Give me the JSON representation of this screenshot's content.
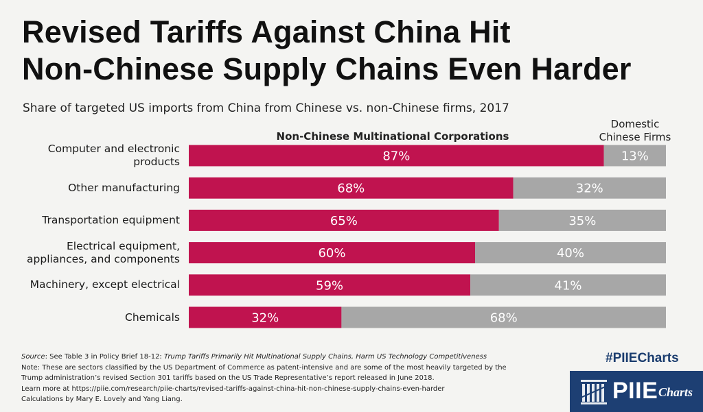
{
  "header": {
    "title_line1": "Revised Tariffs Against China Hit",
    "title_line2": "Non-Chinese Supply Chains Even Harder",
    "subtitle": "Share of targeted US imports from China from Chinese vs. non-Chinese firms, 2017"
  },
  "chart_data": {
    "type": "bar",
    "orientation": "horizontal",
    "stacked": true,
    "unit": "%",
    "xlim": [
      0,
      100
    ],
    "categories": [
      "Computer and electronic products",
      "Other manufacturing",
      "Transportation equipment",
      "Electrical equipment, appliances, and components",
      "Machinery, except electrical",
      "Chemicals"
    ],
    "category_lines": [
      [
        "Computer and electronic",
        "products"
      ],
      [
        "Other manufacturing"
      ],
      [
        "Transportation equipment"
      ],
      [
        "Electrical equipment,",
        "appliances, and components"
      ],
      [
        "Machinery, except electrical"
      ],
      [
        "Chemicals"
      ]
    ],
    "series": [
      {
        "name": "Non-Chinese Multinational Corporations",
        "color": "#c0134f",
        "values": [
          87,
          68,
          65,
          60,
          59,
          32
        ]
      },
      {
        "name": "Domestic Chinese Firms",
        "color": "#a7a7a7",
        "values": [
          13,
          32,
          35,
          40,
          41,
          68
        ]
      }
    ],
    "series_header_left": "Non-Chinese Multinational Corporations",
    "series_header_right": [
      "Domestic",
      "Chinese Firms"
    ],
    "data_labels": [
      [
        "87%",
        "13%"
      ],
      [
        "68%",
        "32%"
      ],
      [
        "65%",
        "35%"
      ],
      [
        "60%",
        "40%"
      ],
      [
        "59%",
        "41%"
      ],
      [
        "32%",
        "68%"
      ]
    ]
  },
  "footer": {
    "source_label": "Source",
    "source_text": ": See Table 3 in Policy Brief 18-12: ",
    "source_title": "Trump Tariffs Primarily Hit Multinational Supply Chains, Harm US Technology Competitiveness",
    "note_line1": "Note: These are sectors classified by the US Department of Commerce as patent-intensive and are some of the most heavily targeted by the",
    "note_line2": "Trump administration’s revised Section 301 tariffs based on the US Trade Representative’s report released in June 2018.",
    "learn_more": "Learn more at https://piie.com/research/piie-charts/revised-tariffs-against-china-hit-non-chinese-supply-chains-even-harder",
    "credits": "Calculations by Mary E. Lovely and Yang Liang."
  },
  "branding": {
    "hashtag": "#PIIECharts",
    "logo_text": "PIIE",
    "logo_sub": "Charts",
    "logo_icon": "piie-columns-icon"
  }
}
